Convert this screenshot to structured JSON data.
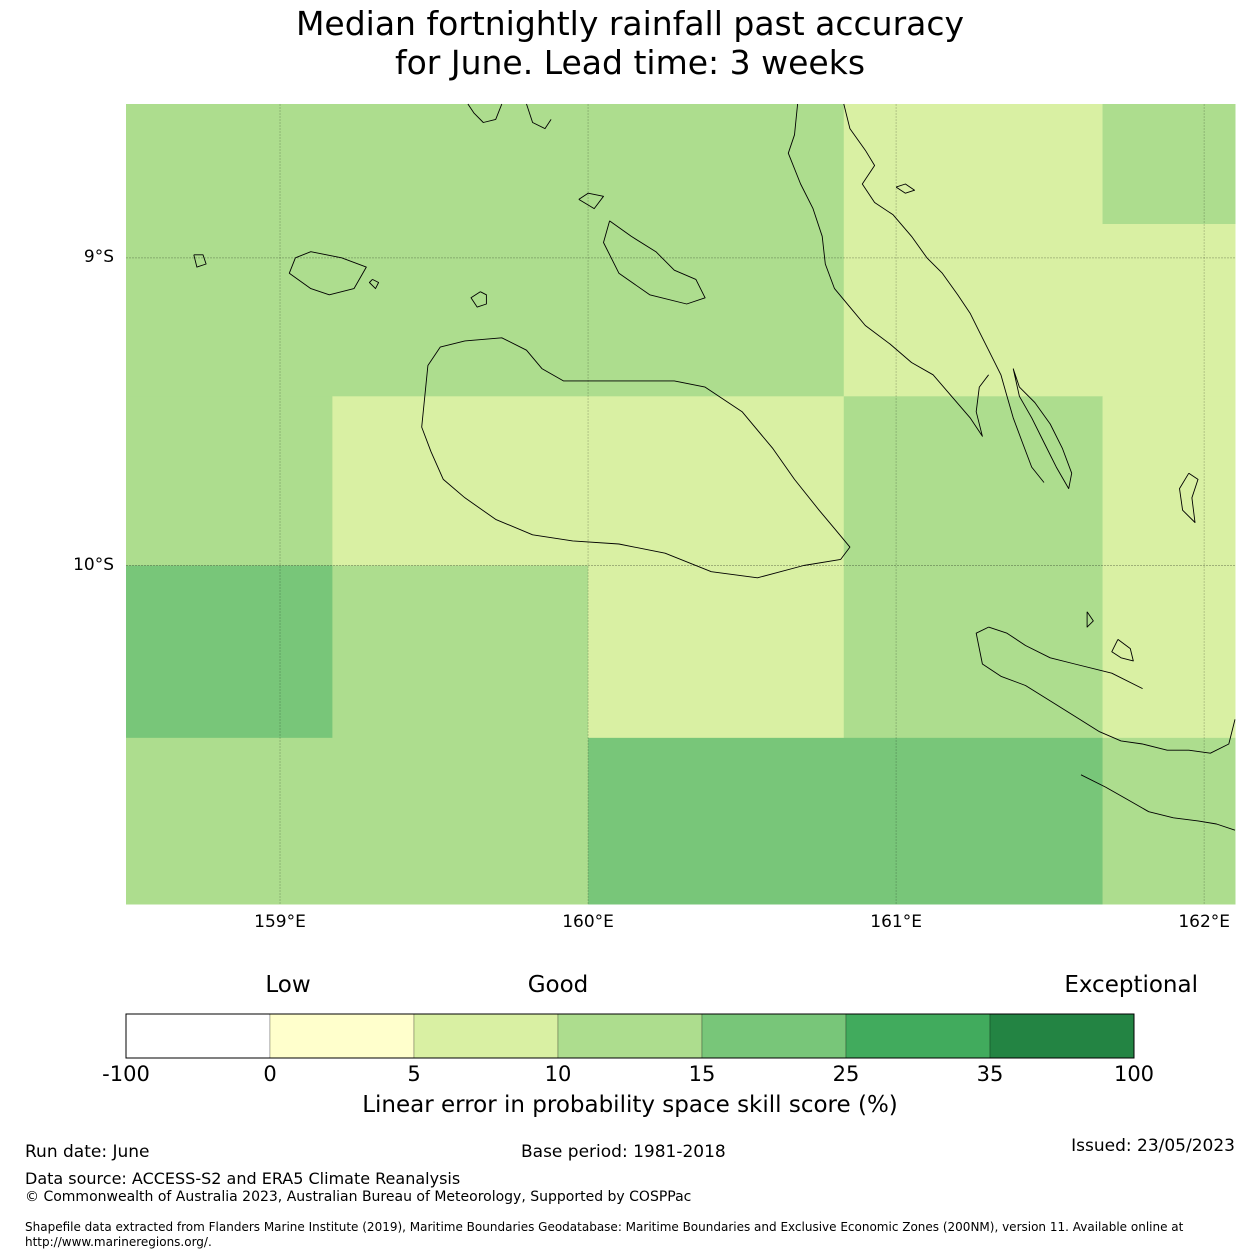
{
  "title": {
    "line1": "Median fortnightly rainfall past accuracy",
    "line2": "for June. Lead time: 3 weeks"
  },
  "map": {
    "lon_range": [
      158.5,
      162.1
    ],
    "lat_range": [
      -11.1,
      -8.5
    ],
    "lat_labels": [
      {
        "value": -9,
        "text": "9°S"
      },
      {
        "value": -10,
        "text": "10°S"
      }
    ],
    "lon_labels": [
      {
        "value": 159,
        "text": "159°E"
      },
      {
        "value": 160,
        "text": "160°E"
      },
      {
        "value": 161,
        "text": "161°E"
      },
      {
        "value": 162,
        "text": "162°E"
      }
    ],
    "grid_cells": [
      {
        "lon": [
          158.5,
          159.17
        ],
        "lat": [
          -9.45,
          -8.5
        ],
        "bin": 3
      },
      {
        "lon": [
          159.17,
          160.0
        ],
        "lat": [
          -9.45,
          -8.5
        ],
        "bin": 3
      },
      {
        "lon": [
          160.0,
          160.83
        ],
        "lat": [
          -9.45,
          -8.5
        ],
        "bin": 3
      },
      {
        "lon": [
          160.83,
          161.67
        ],
        "lat": [
          -9.45,
          -8.5
        ],
        "bin": 2
      },
      {
        "lon": [
          161.67,
          162.1
        ],
        "lat": [
          -8.89,
          -8.5
        ],
        "bin": 3
      },
      {
        "lon": [
          161.67,
          162.1
        ],
        "lat": [
          -9.45,
          -8.89
        ],
        "bin": 2
      },
      {
        "lon": [
          158.5,
          159.17
        ],
        "lat": [
          -10.0,
          -9.45
        ],
        "bin": 3
      },
      {
        "lon": [
          159.17,
          160.0
        ],
        "lat": [
          -10.0,
          -9.45
        ],
        "bin": 2
      },
      {
        "lon": [
          160.0,
          160.83
        ],
        "lat": [
          -10.0,
          -9.45
        ],
        "bin": 2
      },
      {
        "lon": [
          160.83,
          161.67
        ],
        "lat": [
          -10.0,
          -9.45
        ],
        "bin": 3
      },
      {
        "lon": [
          161.67,
          162.1
        ],
        "lat": [
          -10.0,
          -9.45
        ],
        "bin": 2
      },
      {
        "lon": [
          158.5,
          159.17
        ],
        "lat": [
          -10.56,
          -10.0
        ],
        "bin": 4
      },
      {
        "lon": [
          159.17,
          160.0
        ],
        "lat": [
          -10.56,
          -10.0
        ],
        "bin": 3
      },
      {
        "lon": [
          160.0,
          160.83
        ],
        "lat": [
          -10.56,
          -10.0
        ],
        "bin": 2
      },
      {
        "lon": [
          160.83,
          161.67
        ],
        "lat": [
          -10.56,
          -10.0
        ],
        "bin": 3
      },
      {
        "lon": [
          161.67,
          162.1
        ],
        "lat": [
          -10.56,
          -10.0
        ],
        "bin": 2
      },
      {
        "lon": [
          158.5,
          160.0
        ],
        "lat": [
          -11.1,
          -10.56
        ],
        "bin": 3
      },
      {
        "lon": [
          160.0,
          161.67
        ],
        "lat": [
          -11.1,
          -10.56
        ],
        "bin": 4
      },
      {
        "lon": [
          161.67,
          162.1
        ],
        "lat": [
          -11.1,
          -10.56
        ],
        "bin": 3
      }
    ],
    "coastlines": [
      [
        [
          159.61,
          -8.5
        ],
        [
          159.63,
          -8.53
        ],
        [
          159.66,
          -8.56
        ],
        [
          159.7,
          -8.55
        ],
        [
          159.72,
          -8.5
        ]
      ],
      [
        [
          159.8,
          -8.5
        ],
        [
          159.82,
          -8.56
        ],
        [
          159.86,
          -8.58
        ],
        [
          159.88,
          -8.55
        ]
      ],
      [
        [
          160.68,
          -8.5
        ],
        [
          160.67,
          -8.6
        ],
        [
          160.65,
          -8.66
        ],
        [
          160.69,
          -8.76
        ],
        [
          160.73,
          -8.84
        ],
        [
          160.76,
          -8.93
        ],
        [
          160.77,
          -9.02
        ],
        [
          160.8,
          -9.1
        ],
        [
          160.85,
          -9.16
        ],
        [
          160.9,
          -9.22
        ],
        [
          160.98,
          -9.28
        ],
        [
          161.05,
          -9.34
        ],
        [
          161.12,
          -9.38
        ],
        [
          161.18,
          -9.45
        ],
        [
          161.24,
          -9.52
        ],
        [
          161.28,
          -9.58
        ],
        [
          161.26,
          -9.5
        ],
        [
          161.27,
          -9.42
        ],
        [
          161.3,
          -9.38
        ]
      ],
      [
        [
          160.83,
          -8.5
        ],
        [
          160.85,
          -8.58
        ],
        [
          160.9,
          -8.65
        ],
        [
          160.93,
          -8.7
        ],
        [
          160.89,
          -8.76
        ],
        [
          160.93,
          -8.82
        ],
        [
          160.99,
          -8.86
        ],
        [
          161.05,
          -8.93
        ],
        [
          161.1,
          -9.0
        ],
        [
          161.15,
          -9.05
        ],
        [
          161.2,
          -9.12
        ],
        [
          161.24,
          -9.18
        ],
        [
          161.27,
          -9.24
        ],
        [
          161.3,
          -9.3
        ],
        [
          161.34,
          -9.38
        ],
        [
          161.36,
          -9.45
        ],
        [
          161.38,
          -9.52
        ],
        [
          161.41,
          -9.6
        ],
        [
          161.44,
          -9.68
        ],
        [
          161.48,
          -9.73
        ]
      ],
      [
        [
          161.38,
          -9.36
        ],
        [
          161.4,
          -9.42
        ],
        [
          161.45,
          -9.47
        ],
        [
          161.5,
          -9.54
        ],
        [
          161.54,
          -9.62
        ],
        [
          161.57,
          -9.7
        ],
        [
          161.56,
          -9.75
        ],
        [
          161.52,
          -9.68
        ],
        [
          161.48,
          -9.6
        ],
        [
          161.44,
          -9.52
        ],
        [
          161.4,
          -9.45
        ],
        [
          161.38,
          -9.36
        ]
      ],
      [
        [
          159.6,
          -9.27
        ],
        [
          159.52,
          -9.29
        ],
        [
          159.48,
          -9.35
        ],
        [
          159.47,
          -9.45
        ],
        [
          159.46,
          -9.55
        ],
        [
          159.49,
          -9.63
        ],
        [
          159.53,
          -9.72
        ],
        [
          159.6,
          -9.78
        ],
        [
          159.7,
          -9.85
        ],
        [
          159.82,
          -9.9
        ],
        [
          159.95,
          -9.92
        ],
        [
          160.1,
          -9.93
        ],
        [
          160.25,
          -9.96
        ],
        [
          160.4,
          -10.02
        ],
        [
          160.55,
          -10.04
        ],
        [
          160.7,
          -10.0
        ],
        [
          160.82,
          -9.98
        ],
        [
          160.85,
          -9.94
        ],
        [
          160.8,
          -9.88
        ],
        [
          160.75,
          -9.82
        ],
        [
          160.67,
          -9.72
        ],
        [
          160.6,
          -9.62
        ],
        [
          160.5,
          -9.5
        ],
        [
          160.38,
          -9.42
        ],
        [
          160.28,
          -9.4
        ],
        [
          160.18,
          -9.4
        ],
        [
          160.05,
          -9.4
        ],
        [
          159.92,
          -9.4
        ],
        [
          159.85,
          -9.36
        ],
        [
          159.8,
          -9.3
        ],
        [
          159.72,
          -9.26
        ],
        [
          159.6,
          -9.27
        ]
      ],
      [
        [
          159.05,
          -9.0
        ],
        [
          159.03,
          -9.05
        ],
        [
          159.1,
          -9.1
        ],
        [
          159.16,
          -9.12
        ],
        [
          159.24,
          -9.1
        ],
        [
          159.28,
          -9.03
        ],
        [
          159.2,
          -9.0
        ],
        [
          159.1,
          -8.98
        ],
        [
          159.05,
          -9.0
        ]
      ],
      [
        [
          160.07,
          -8.88
        ],
        [
          160.05,
          -8.95
        ],
        [
          160.1,
          -9.05
        ],
        [
          160.2,
          -9.12
        ],
        [
          160.32,
          -9.15
        ],
        [
          160.38,
          -9.13
        ],
        [
          160.35,
          -9.07
        ],
        [
          160.28,
          -9.04
        ],
        [
          160.22,
          -8.98
        ],
        [
          160.14,
          -8.93
        ],
        [
          160.07,
          -8.88
        ]
      ],
      [
        [
          159.97,
          -8.81
        ],
        [
          160.0,
          -8.79
        ],
        [
          160.05,
          -8.8
        ],
        [
          160.02,
          -8.84
        ],
        [
          159.97,
          -8.81
        ]
      ],
      [
        [
          159.65,
          -9.11
        ],
        [
          159.67,
          -9.12
        ],
        [
          159.67,
          -9.15
        ],
        [
          159.64,
          -9.16
        ],
        [
          159.62,
          -9.13
        ],
        [
          159.65,
          -9.11
        ]
      ],
      [
        [
          158.72,
          -8.99
        ],
        [
          158.75,
          -8.99
        ],
        [
          158.76,
          -9.02
        ],
        [
          158.73,
          -9.03
        ],
        [
          158.72,
          -8.99
        ]
      ],
      [
        [
          161.0,
          -8.77
        ],
        [
          161.03,
          -8.76
        ],
        [
          161.06,
          -8.78
        ],
        [
          161.03,
          -8.79
        ],
        [
          161.0,
          -8.77
        ]
      ],
      [
        [
          159.3,
          -9.07
        ],
        [
          159.32,
          -9.08
        ],
        [
          159.31,
          -9.1
        ],
        [
          159.29,
          -9.08
        ],
        [
          159.3,
          -9.07
        ]
      ],
      [
        [
          161.95,
          -9.7
        ],
        [
          161.92,
          -9.75
        ],
        [
          161.93,
          -9.82
        ],
        [
          161.97,
          -9.86
        ],
        [
          161.96,
          -9.78
        ],
        [
          161.98,
          -9.72
        ],
        [
          161.95,
          -9.7
        ]
      ],
      [
        [
          161.72,
          -10.24
        ],
        [
          161.7,
          -10.28
        ],
        [
          161.73,
          -10.3
        ],
        [
          161.77,
          -10.31
        ],
        [
          161.76,
          -10.27
        ],
        [
          161.72,
          -10.24
        ]
      ],
      [
        [
          161.62,
          -10.15
        ],
        [
          161.64,
          -10.18
        ],
        [
          161.62,
          -10.2
        ],
        [
          161.62,
          -10.15
        ]
      ],
      [
        [
          161.3,
          -10.2
        ],
        [
          161.26,
          -10.22
        ],
        [
          161.28,
          -10.32
        ],
        [
          161.34,
          -10.36
        ],
        [
          161.42,
          -10.39
        ],
        [
          161.5,
          -10.44
        ],
        [
          161.58,
          -10.49
        ],
        [
          161.66,
          -10.54
        ],
        [
          161.73,
          -10.57
        ],
        [
          161.8,
          -10.58
        ],
        [
          161.88,
          -10.6
        ],
        [
          161.95,
          -10.6
        ],
        [
          162.02,
          -10.61
        ],
        [
          162.08,
          -10.58
        ],
        [
          162.1,
          -10.5
        ]
      ],
      [
        [
          161.8,
          -10.4
        ],
        [
          161.7,
          -10.35
        ],
        [
          161.58,
          -10.32
        ],
        [
          161.5,
          -10.3
        ],
        [
          161.42,
          -10.26
        ],
        [
          161.36,
          -10.22
        ],
        [
          161.3,
          -10.2
        ]
      ],
      [
        [
          161.6,
          -10.68
        ],
        [
          161.68,
          -10.72
        ],
        [
          161.75,
          -10.76
        ],
        [
          161.82,
          -10.8
        ],
        [
          161.9,
          -10.82
        ],
        [
          161.98,
          -10.83
        ],
        [
          162.04,
          -10.84
        ],
        [
          162.1,
          -10.86
        ]
      ]
    ]
  },
  "colorbar": {
    "categories": [
      {
        "text": "Low",
        "value": 0
      },
      {
        "text": "Good",
        "value": 10
      },
      {
        "text": "Exceptional",
        "value": 100
      }
    ],
    "ticks": [
      "-100",
      "0",
      "5",
      "10",
      "15",
      "25",
      "35",
      "100"
    ],
    "bins": [
      {
        "from": -100,
        "to": 0,
        "color": "#ffffff"
      },
      {
        "from": 0,
        "to": 5,
        "color": "#ffffcc"
      },
      {
        "from": 5,
        "to": 10,
        "color": "#d9f0a3"
      },
      {
        "from": 10,
        "to": 15,
        "color": "#addd8e"
      },
      {
        "from": 15,
        "to": 25,
        "color": "#78c679"
      },
      {
        "from": 25,
        "to": 35,
        "color": "#41ab5d"
      },
      {
        "from": 35,
        "to": 100,
        "color": "#238443"
      }
    ],
    "label": "Linear error in probability space skill score (%)"
  },
  "footer": {
    "run_date": "Run date: June",
    "base_period": "Base period: 1981-2018",
    "issued": "Issued: 23/05/2023",
    "data_source": "Data source: ACCESS-S2 and ERA5 Climate Reanalysis",
    "copyright": "© Commonwealth of Australia 2023, Australian Bureau of Meteorology, Supported by COSPPac",
    "shapefile_line1": "Shapefile data extracted from Flanders Marine Institute (2019), Maritime Boundaries Geodatabase: Maritime Boundaries and Exclusive Economic Zones (200NM), version 11. Available online at",
    "shapefile_line2": "http://www.marineregions.org/."
  }
}
